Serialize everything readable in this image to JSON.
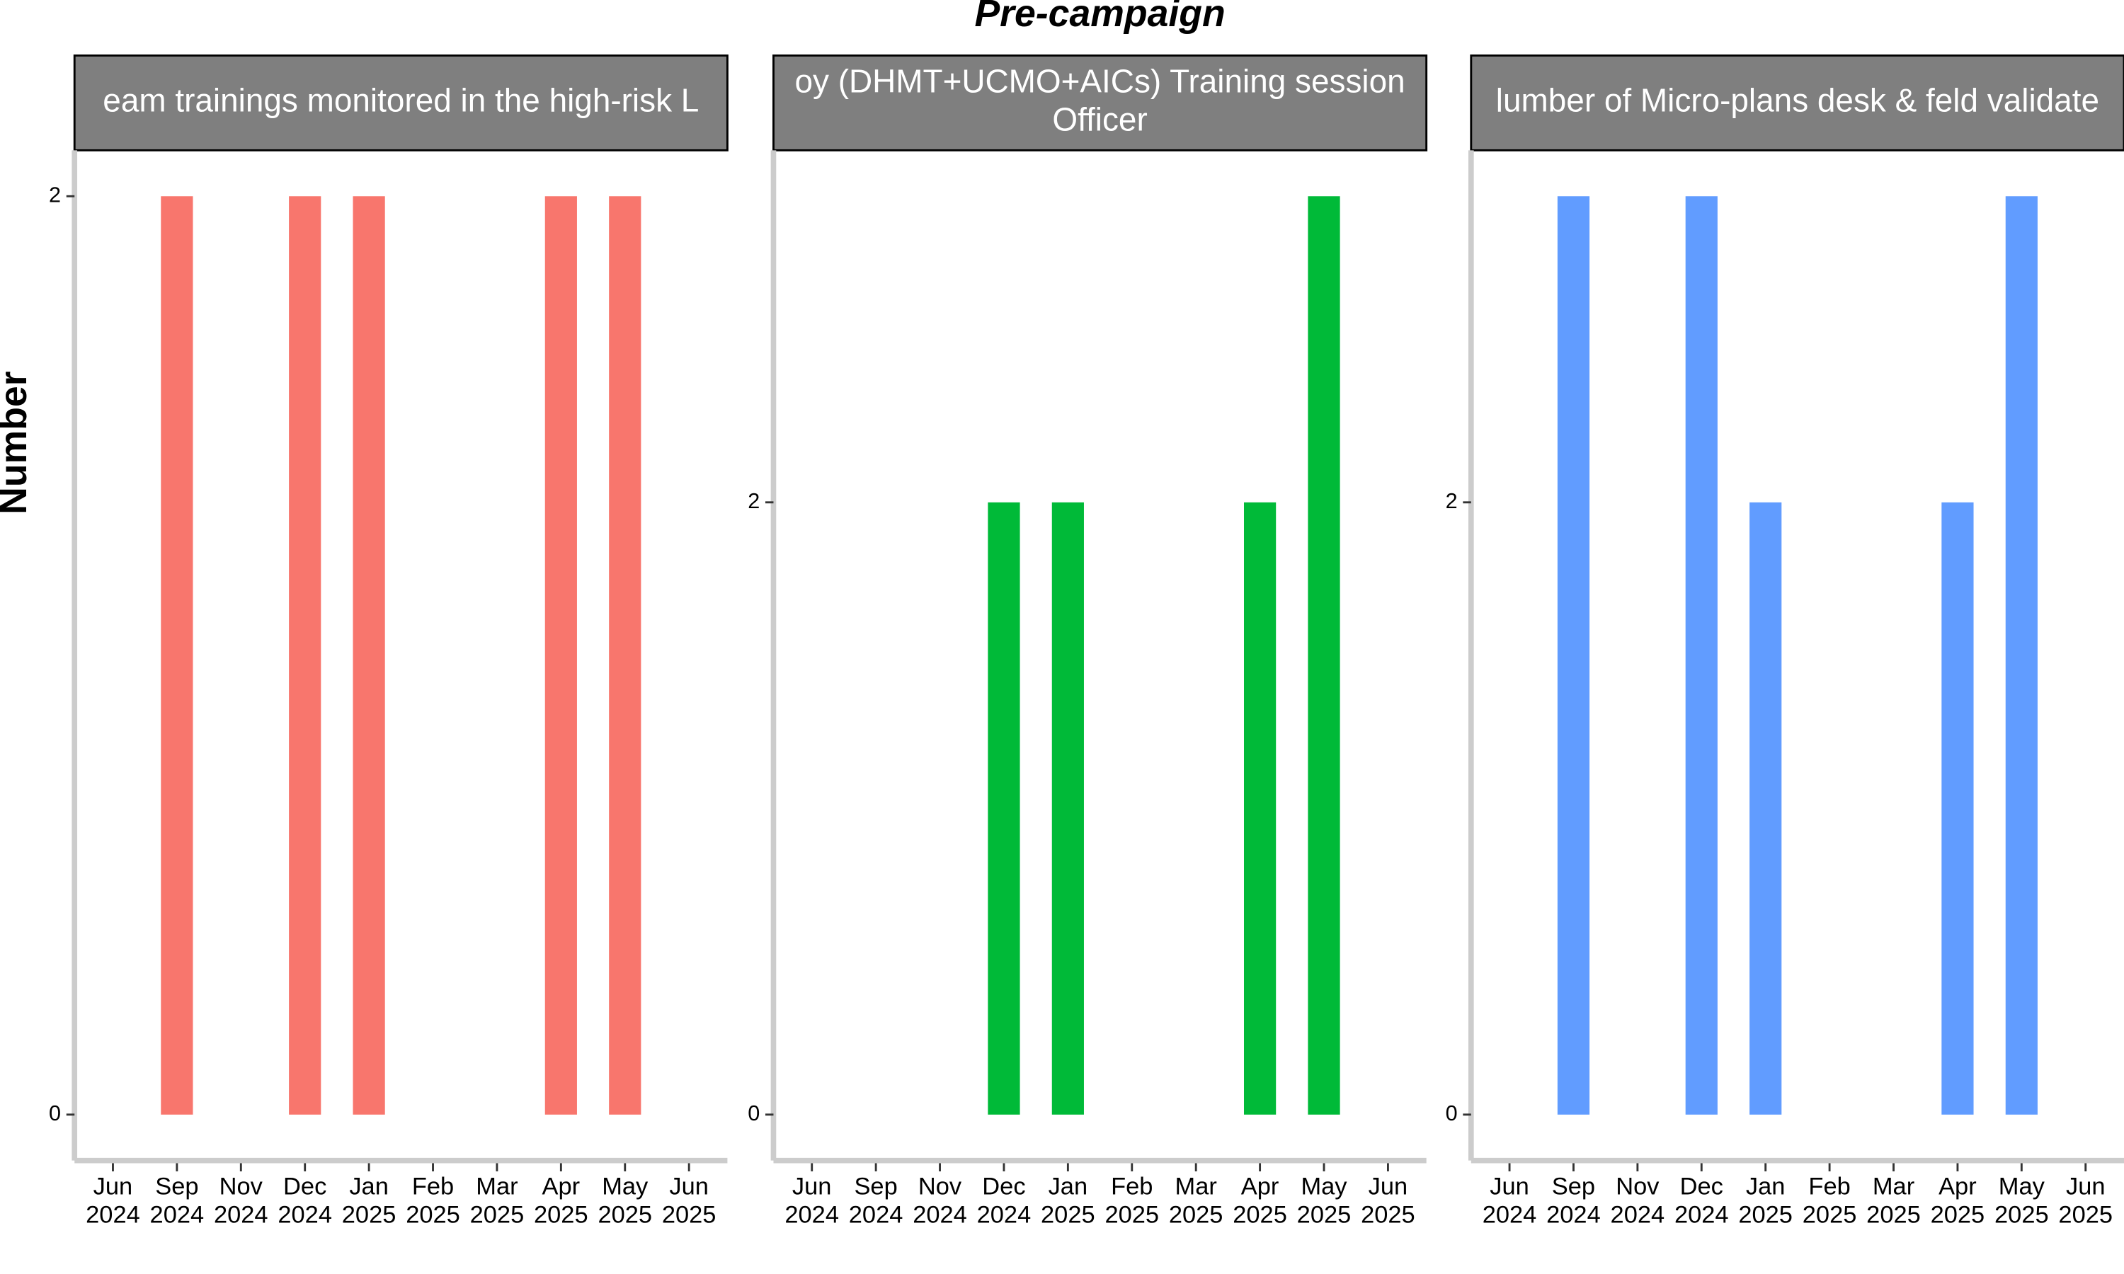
{
  "title": "Pre-campaign",
  "ylabel": "Number",
  "chart_data": [
    {
      "type": "bar",
      "title_lines": [
        "eam trainings monitored in the high-risk L"
      ],
      "categories": [
        "Jun 2024",
        "Sep 2024",
        "Nov 2024",
        "Dec 2024",
        "Jan 2025",
        "Feb 2025",
        "Mar 2025",
        "Apr 2025",
        "May 2025",
        "Jun 2025"
      ],
      "values": [
        null,
        2,
        null,
        2,
        2,
        null,
        null,
        2,
        2,
        null
      ],
      "color": "#F8766D",
      "ylim": [
        -0.1,
        2.1
      ],
      "yticks": [
        0,
        2
      ]
    },
    {
      "type": "bar",
      "title_lines": [
        "oy (DHMT+UCMO+AICs) Training session",
        "Officer"
      ],
      "categories": [
        "Jun 2024",
        "Sep 2024",
        "Nov 2024",
        "Dec 2024",
        "Jan 2025",
        "Feb 2025",
        "Mar 2025",
        "Apr 2025",
        "May 2025",
        "Jun 2025"
      ],
      "values": [
        null,
        null,
        null,
        2,
        2,
        null,
        null,
        2,
        3,
        null
      ],
      "color": "#00BA38",
      "ylim": [
        -0.15,
        3.15
      ],
      "yticks": [
        0,
        2
      ]
    },
    {
      "type": "bar",
      "title_lines": [
        "lumber of Micro-plans desk & feld validate"
      ],
      "categories": [
        "Jun 2024",
        "Sep 2024",
        "Nov 2024",
        "Dec 2024",
        "Jan 2025",
        "Feb 2025",
        "Mar 2025",
        "Apr 2025",
        "May 2025",
        "Jun 2025"
      ],
      "values": [
        null,
        3,
        null,
        3,
        2,
        null,
        null,
        2,
        3,
        null
      ],
      "color": "#619CFF",
      "ylim": [
        -0.15,
        3.15
      ],
      "yticks": [
        0,
        2
      ]
    }
  ]
}
